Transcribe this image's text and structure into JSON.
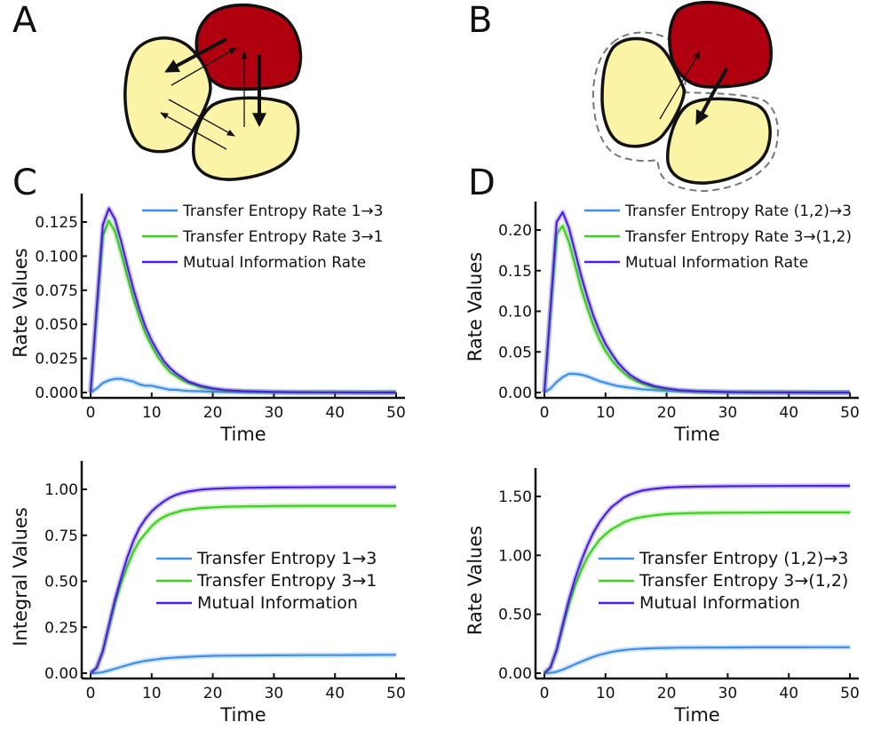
{
  "figure": {
    "panel_letters": [
      "A",
      "B",
      "C",
      "D"
    ],
    "diagrams": {
      "A": {
        "description": "Three cells; one red (driver) and two yellow. Thick arrows from red to both yellow cells, thin arrows back and between yellow cells.",
        "colors": {
          "red_cell": "#b00010",
          "yellow_cell": "#fbf3a6",
          "outline": "#111111"
        }
      },
      "B": {
        "description": "Same three cells; the two yellow cells grouped by a dashed outline as (1,2). Thick arrow from red to group, thin arrow from group to red.",
        "colors": {
          "red_cell": "#b00010",
          "yellow_cell": "#fbf3a6",
          "outline": "#111111",
          "group_dash": "#777777"
        }
      }
    },
    "colors": {
      "blue": "#3d8fe8",
      "green": "#3bd11c",
      "purple": "#4a1fe0"
    }
  },
  "chart_data": [
    {
      "id": "C-rate",
      "panel": "C",
      "type": "line",
      "title": "",
      "xlabel": "Time",
      "ylabel": "Rate Values",
      "xlim": [
        0,
        50
      ],
      "ylim": [
        0,
        0.125
      ],
      "xticks": [
        0,
        10,
        20,
        30,
        40,
        50
      ],
      "xtick_labels": [
        "0",
        "10",
        "20",
        "30",
        "40",
        "50"
      ],
      "yticks": [
        0,
        0.025,
        0.05,
        0.075,
        0.1,
        0.125
      ],
      "ytick_labels": [
        "0.000",
        "0.025",
        "0.050",
        "0.075",
        "0.100",
        "0.125"
      ],
      "legend_position": "top-right",
      "x": [
        0,
        1,
        2,
        3,
        4,
        5,
        6,
        7,
        8,
        9,
        10,
        11,
        12,
        13,
        14,
        15,
        16,
        18,
        20,
        22,
        25,
        30,
        35,
        40,
        45,
        50
      ],
      "series": [
        {
          "name": "Transfer Entropy Rate 1→3",
          "color": "#3d8fe8",
          "values": [
            0.0,
            0.003,
            0.007,
            0.009,
            0.01,
            0.01,
            0.009,
            0.008,
            0.006,
            0.005,
            0.005,
            0.004,
            0.003,
            0.002,
            0.002,
            0.0015,
            0.0012,
            0.001,
            0.0006,
            0.0004,
            0.0003,
            0.0002,
            0.0002,
            0.0002,
            0.0002,
            0.0003
          ]
        },
        {
          "name": "Transfer Entropy Rate 3→1",
          "color": "#3bd11c",
          "values": [
            0.0,
            0.06,
            0.115,
            0.126,
            0.118,
            0.102,
            0.085,
            0.069,
            0.055,
            0.043,
            0.034,
            0.026,
            0.02,
            0.015,
            0.012,
            0.009,
            0.007,
            0.004,
            0.0025,
            0.0015,
            0.0008,
            0.0003,
            0.0001,
            0.0001,
            0.0,
            0.0
          ]
        },
        {
          "name": "Mutual Information Rate",
          "color": "#4a1fe0",
          "values": [
            0.0,
            0.062,
            0.123,
            0.135,
            0.127,
            0.111,
            0.093,
            0.076,
            0.061,
            0.048,
            0.038,
            0.03,
            0.023,
            0.018,
            0.014,
            0.011,
            0.008,
            0.005,
            0.003,
            0.0018,
            0.001,
            0.0004,
            0.0002,
            0.0001,
            0.0,
            0.0
          ]
        }
      ]
    },
    {
      "id": "D-rate",
      "panel": "D",
      "type": "line",
      "title": "",
      "xlabel": "Time",
      "ylabel": "Rate Values",
      "xlim": [
        0,
        50
      ],
      "ylim": [
        0,
        0.2
      ],
      "xticks": [
        0,
        10,
        20,
        30,
        40,
        50
      ],
      "xtick_labels": [
        "0",
        "10",
        "20",
        "30",
        "40",
        "50"
      ],
      "yticks": [
        0,
        0.05,
        0.1,
        0.15,
        0.2
      ],
      "ytick_labels": [
        "0.00",
        "0.05",
        "0.10",
        "0.15",
        "0.20"
      ],
      "legend_position": "top-right",
      "x": [
        0,
        1,
        2,
        3,
        4,
        5,
        6,
        7,
        8,
        9,
        10,
        11,
        12,
        13,
        14,
        15,
        16,
        18,
        20,
        22,
        25,
        30,
        35,
        40,
        45,
        50
      ],
      "series": [
        {
          "name": "Transfer Entropy Rate (1,2)→3",
          "color": "#3d8fe8",
          "values": [
            0.0,
            0.005,
            0.013,
            0.019,
            0.023,
            0.023,
            0.022,
            0.02,
            0.017,
            0.014,
            0.012,
            0.01,
            0.008,
            0.007,
            0.006,
            0.005,
            0.004,
            0.003,
            0.002,
            0.0015,
            0.001,
            0.0005,
            0.0004,
            0.0003,
            0.0003,
            0.0003
          ]
        },
        {
          "name": "Transfer Entropy Rate 3→(1,2)",
          "color": "#3bd11c",
          "values": [
            0.0,
            0.1,
            0.195,
            0.205,
            0.185,
            0.157,
            0.128,
            0.104,
            0.083,
            0.065,
            0.051,
            0.04,
            0.031,
            0.024,
            0.018,
            0.014,
            0.011,
            0.006,
            0.004,
            0.0025,
            0.0012,
            0.0004,
            0.0002,
            0.0001,
            0.0,
            0.0
          ]
        },
        {
          "name": "Mutual Information Rate",
          "color": "#4a1fe0",
          "values": [
            0.0,
            0.105,
            0.21,
            0.222,
            0.203,
            0.174,
            0.144,
            0.118,
            0.095,
            0.076,
            0.06,
            0.048,
            0.037,
            0.029,
            0.022,
            0.017,
            0.013,
            0.008,
            0.005,
            0.003,
            0.0015,
            0.0005,
            0.0002,
            0.0001,
            0.0,
            0.0
          ]
        }
      ]
    },
    {
      "id": "C-integral",
      "panel": "C",
      "type": "line",
      "title": "",
      "xlabel": "Time",
      "ylabel": "Integral Values",
      "xlim": [
        0,
        50
      ],
      "ylim": [
        0,
        1.0
      ],
      "xticks": [
        0,
        10,
        20,
        30,
        40,
        50
      ],
      "xtick_labels": [
        "0",
        "10",
        "20",
        "30",
        "40",
        "50"
      ],
      "yticks": [
        0,
        0.25,
        0.5,
        0.75,
        1.0
      ],
      "ytick_labels": [
        "0.00",
        "0.25",
        "0.50",
        "0.75",
        "1.00"
      ],
      "legend_position": "center-right",
      "x": [
        0,
        1,
        2,
        3,
        4,
        5,
        6,
        7,
        8,
        9,
        10,
        11,
        12,
        13,
        14,
        15,
        16,
        18,
        20,
        22,
        25,
        30,
        35,
        40,
        45,
        50
      ],
      "series": [
        {
          "name": "Transfer Entropy 1→3",
          "color": "#3d8fe8",
          "values": [
            0.0,
            0.001,
            0.006,
            0.014,
            0.024,
            0.034,
            0.044,
            0.053,
            0.061,
            0.067,
            0.072,
            0.076,
            0.08,
            0.083,
            0.085,
            0.087,
            0.089,
            0.092,
            0.094,
            0.095,
            0.096,
            0.097,
            0.098,
            0.098,
            0.099,
            0.1
          ]
        },
        {
          "name": "Transfer Entropy 3→1",
          "color": "#3bd11c",
          "values": [
            0.0,
            0.03,
            0.12,
            0.25,
            0.38,
            0.49,
            0.58,
            0.66,
            0.72,
            0.76,
            0.8,
            0.83,
            0.85,
            0.865,
            0.875,
            0.885,
            0.89,
            0.898,
            0.902,
            0.905,
            0.907,
            0.909,
            0.91,
            0.91,
            0.91,
            0.91
          ]
        },
        {
          "name": "Mutual Information",
          "color": "#4a1fe0",
          "values": [
            0.0,
            0.03,
            0.12,
            0.26,
            0.4,
            0.52,
            0.63,
            0.72,
            0.79,
            0.84,
            0.88,
            0.91,
            0.935,
            0.955,
            0.97,
            0.98,
            0.988,
            0.998,
            1.003,
            1.006,
            1.008,
            1.01,
            1.011,
            1.012,
            1.012,
            1.012
          ]
        }
      ]
    },
    {
      "id": "D-integral",
      "panel": "D",
      "type": "line",
      "title": "",
      "xlabel": "Time",
      "ylabel": "Rate Values",
      "xlim": [
        0,
        50
      ],
      "ylim": [
        0,
        1.5
      ],
      "xticks": [
        0,
        10,
        20,
        30,
        40,
        50
      ],
      "xtick_labels": [
        "0",
        "10",
        "20",
        "30",
        "40",
        "50"
      ],
      "yticks": [
        0,
        0.5,
        1.0,
        1.5
      ],
      "ytick_labels": [
        "0.00",
        "0.50",
        "1.00",
        "1.50"
      ],
      "legend_position": "center-right",
      "x": [
        0,
        1,
        2,
        3,
        4,
        5,
        6,
        7,
        8,
        9,
        10,
        11,
        12,
        13,
        14,
        15,
        16,
        18,
        20,
        22,
        25,
        30,
        35,
        40,
        45,
        50
      ],
      "series": [
        {
          "name": "Transfer Entropy (1,2)→3",
          "color": "#3d8fe8",
          "values": [
            0.0,
            0.002,
            0.012,
            0.03,
            0.052,
            0.075,
            0.097,
            0.118,
            0.138,
            0.155,
            0.168,
            0.18,
            0.189,
            0.196,
            0.201,
            0.205,
            0.208,
            0.212,
            0.214,
            0.216,
            0.217,
            0.218,
            0.219,
            0.219,
            0.22,
            0.22
          ]
        },
        {
          "name": "Transfer Entropy 3→(1,2)",
          "color": "#3bd11c",
          "values": [
            0.0,
            0.05,
            0.19,
            0.39,
            0.58,
            0.74,
            0.87,
            0.98,
            1.06,
            1.13,
            1.18,
            1.22,
            1.25,
            1.28,
            1.3,
            1.315,
            1.325,
            1.34,
            1.35,
            1.355,
            1.36,
            1.362,
            1.363,
            1.364,
            1.364,
            1.364
          ]
        },
        {
          "name": "Mutual Information",
          "color": "#4a1fe0",
          "values": [
            0.0,
            0.05,
            0.2,
            0.41,
            0.62,
            0.8,
            0.95,
            1.08,
            1.19,
            1.28,
            1.35,
            1.41,
            1.45,
            1.49,
            1.515,
            1.535,
            1.55,
            1.565,
            1.575,
            1.58,
            1.584,
            1.587,
            1.588,
            1.589,
            1.59,
            1.59
          ]
        }
      ]
    }
  ]
}
